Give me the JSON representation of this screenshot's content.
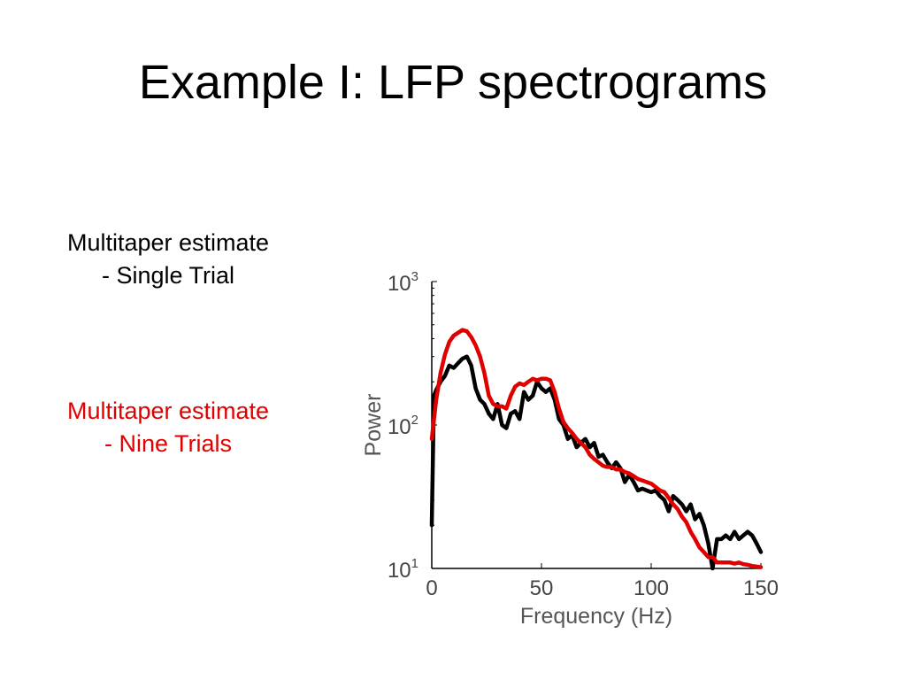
{
  "slide": {
    "title": "Example I:  LFP spectrograms",
    "captions": [
      {
        "lines": [
          "Multitaper estimate",
          "- Single Trial"
        ],
        "color": "#000000"
      },
      {
        "lines": [
          "Multitaper estimate",
          "- Nine Trials"
        ],
        "color": "#e00000"
      }
    ]
  },
  "chart_data": {
    "type": "line",
    "xlabel": "Frequency (Hz)",
    "ylabel": "Power",
    "xlim": [
      0,
      150
    ],
    "ylim": [
      10,
      1000
    ],
    "yscale": "log",
    "xticks": [
      0,
      50,
      100,
      150
    ],
    "yticks": [
      {
        "value": 10,
        "base": "10",
        "exp": "1"
      },
      {
        "value": 100,
        "base": "10",
        "exp": "2"
      },
      {
        "value": 1000,
        "base": "10",
        "exp": "3"
      }
    ],
    "grid": false,
    "series": [
      {
        "color": "#000000",
        "x": [
          0,
          1,
          2,
          4,
          6,
          8,
          10,
          12,
          14,
          16,
          18,
          20,
          22,
          24,
          26,
          28,
          30,
          32,
          34,
          36,
          38,
          40,
          42,
          44,
          46,
          48,
          50,
          52,
          54,
          56,
          58,
          60,
          62,
          64,
          66,
          68,
          70,
          72,
          74,
          76,
          78,
          80,
          82,
          84,
          86,
          88,
          90,
          92,
          94,
          96,
          98,
          100,
          102,
          104,
          106,
          108,
          110,
          112,
          114,
          116,
          118,
          120,
          122,
          124,
          126,
          128,
          130,
          132,
          134,
          136,
          138,
          140,
          142,
          144,
          146,
          148,
          150
        ],
        "y": [
          20,
          160,
          175,
          200,
          220,
          260,
          250,
          270,
          290,
          300,
          260,
          180,
          150,
          140,
          120,
          110,
          140,
          100,
          95,
          120,
          125,
          110,
          170,
          150,
          160,
          200,
          180,
          170,
          180,
          150,
          110,
          100,
          80,
          85,
          70,
          75,
          80,
          70,
          75,
          60,
          62,
          55,
          50,
          55,
          50,
          40,
          45,
          40,
          35,
          36,
          35,
          34,
          35,
          32,
          30,
          25,
          32,
          30,
          28,
          25,
          28,
          22,
          24,
          20,
          15,
          10,
          16,
          16,
          17,
          16,
          18,
          16,
          17,
          18,
          17,
          15,
          13
        ]
      },
      {
        "color": "#e00000",
        "x": [
          0,
          2,
          4,
          6,
          8,
          10,
          12,
          14,
          16,
          18,
          20,
          22,
          24,
          26,
          28,
          30,
          32,
          34,
          36,
          38,
          40,
          42,
          44,
          46,
          48,
          50,
          52,
          54,
          56,
          58,
          60,
          62,
          64,
          66,
          68,
          70,
          72,
          74,
          76,
          78,
          80,
          82,
          84,
          86,
          88,
          90,
          92,
          94,
          96,
          98,
          100,
          102,
          104,
          106,
          108,
          110,
          112,
          114,
          116,
          118,
          120,
          122,
          124,
          126,
          128,
          130,
          132,
          134,
          136,
          138,
          140,
          142,
          144,
          146,
          148,
          150
        ],
        "y": [
          80,
          150,
          230,
          310,
          380,
          420,
          440,
          460,
          450,
          410,
          360,
          300,
          230,
          160,
          140,
          135,
          135,
          130,
          160,
          185,
          195,
          190,
          200,
          210,
          205,
          210,
          210,
          205,
          170,
          130,
          105,
          95,
          88,
          80,
          75,
          70,
          62,
          58,
          55,
          52,
          51,
          51,
          49,
          49,
          47,
          46,
          44,
          42,
          41,
          40,
          39,
          37,
          35,
          34,
          31,
          28,
          26,
          23,
          21,
          18,
          16,
          14,
          13,
          12,
          12,
          11,
          11,
          11,
          11,
          10.8,
          11,
          10.7,
          10.6,
          10.4,
          10.3,
          10.2
        ]
      }
    ]
  }
}
